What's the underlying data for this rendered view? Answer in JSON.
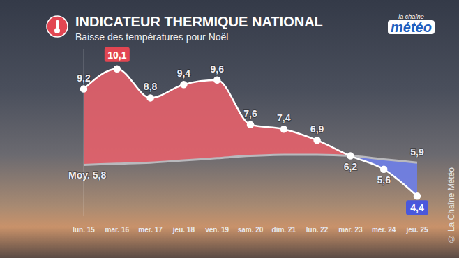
{
  "chart_data": {
    "type": "line",
    "title": "INDICATEUR THERMIQUE NATIONAL",
    "subtitle": "Baisse des températures pour Noël",
    "annotations": [
      "la chaîne météo",
      "© La Chaîne Météo"
    ],
    "categories": [
      "lun. 15",
      "mar. 16",
      "mer. 17",
      "jeu. 18",
      "ven. 19",
      "sam. 20",
      "dim. 21",
      "lun. 22",
      "mar. 23",
      "mer. 24",
      "jeu. 25"
    ],
    "series": [
      {
        "color": "#ffffff",
        "marker": "circle",
        "values": [
          9.2,
          10.1,
          8.8,
          9.4,
          9.6,
          7.6,
          7.4,
          6.9,
          6.2,
          5.6,
          4.4
        ],
        "value_labels": [
          "9,2",
          "10,1",
          "8,8",
          "9,4",
          "9,6",
          "7,6",
          "7,4",
          "6,9",
          "6,2",
          "5,6",
          "4,4"
        ]
      },
      {
        "color": "#b9b9bd",
        "values": [
          5.8,
          5.85,
          5.9,
          6.0,
          6.1,
          6.2,
          6.25,
          6.25,
          6.2,
          6.05,
          5.9
        ],
        "value_labels": [
          "Moy. 5,8",
          null,
          null,
          null,
          null,
          null,
          null,
          null,
          null,
          null,
          "5,9"
        ]
      }
    ],
    "ylim": [
      3.5,
      11
    ],
    "tick_labels": "x",
    "grid": false,
    "data_labels": true
  }
}
